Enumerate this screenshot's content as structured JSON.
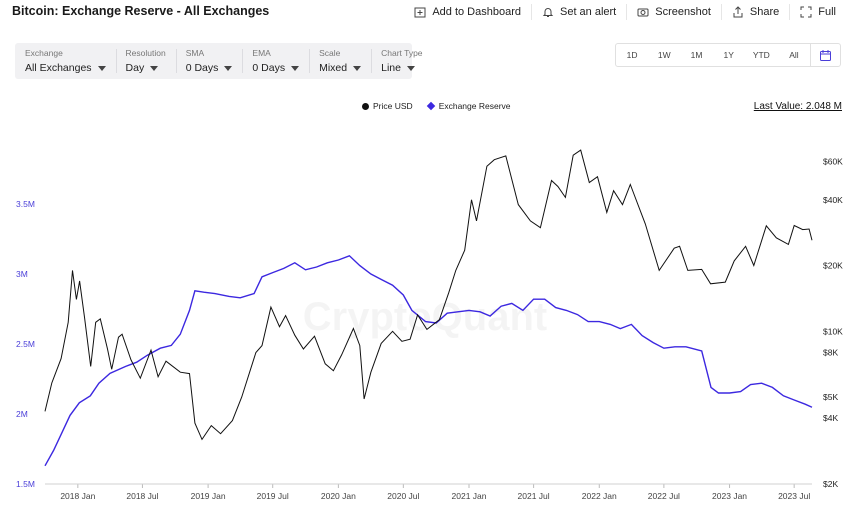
{
  "header": {
    "title": "Bitcoin: Exchange Reserve - All Exchanges",
    "actions": [
      {
        "label": "Add to Dashboard",
        "icon": "add-dashboard-icon"
      },
      {
        "label": "Set an alert",
        "icon": "bell-icon"
      },
      {
        "label": "Screenshot",
        "icon": "camera-icon"
      },
      {
        "label": "Share",
        "icon": "share-icon"
      },
      {
        "label": "Full",
        "icon": "fullscreen-icon"
      }
    ]
  },
  "filters": [
    {
      "label": "Exchange",
      "value": "All Exchanges"
    },
    {
      "label": "Resolution",
      "value": "Day"
    },
    {
      "label": "SMA",
      "value": "0 Days"
    },
    {
      "label": "EMA",
      "value": "0 Days"
    },
    {
      "label": "Scale",
      "value": "Mixed"
    },
    {
      "label": "Chart Type",
      "value": "Line"
    }
  ],
  "ranges": [
    "1D",
    "1W",
    "1M",
    "1Y",
    "YTD",
    "All"
  ],
  "legend": [
    "Price USD",
    "Exchange Reserve"
  ],
  "last_value": "Last Value: 2.048 M",
  "watermark": "CryptoQuant",
  "colors": {
    "price": "#111111",
    "reserve": "#3c28e0",
    "left_axis": "#4a3ed8"
  },
  "chart_data": {
    "type": "line",
    "x_ticks": [
      "2018 Jan",
      "2018 Jul",
      "2019 Jan",
      "2019 Jul",
      "2020 Jan",
      "2020 Jul",
      "2021 Jan",
      "2021 Jul",
      "2022 Jan",
      "2022 Jul",
      "2023 Jan",
      "2023 Jul"
    ],
    "x_range": [
      "2017-10-01",
      "2023-08-20"
    ],
    "left_axis": {
      "ticks": [
        "1.5M",
        "2M",
        "2.5M",
        "3M",
        "3.5M"
      ],
      "range": [
        1.5,
        4.0
      ],
      "unit": "M"
    },
    "right_axis": {
      "ticks": [
        "$2K",
        "$4K",
        "$5K",
        "$8K",
        "$10K",
        "$20K",
        "$40K",
        "$60K"
      ],
      "scale": "log",
      "range": [
        2000,
        80000
      ]
    },
    "series": [
      {
        "name": "Price USD",
        "axis": "right",
        "points": [
          [
            "2017-10-01",
            4300
          ],
          [
            "2017-10-20",
            5800
          ],
          [
            "2017-11-15",
            7500
          ],
          [
            "2017-12-05",
            11000
          ],
          [
            "2017-12-17",
            19000
          ],
          [
            "2017-12-28",
            14000
          ],
          [
            "2018-01-06",
            17000
          ],
          [
            "2018-01-20",
            11500
          ],
          [
            "2018-02-06",
            6900
          ],
          [
            "2018-02-20",
            11000
          ],
          [
            "2018-03-05",
            11400
          ],
          [
            "2018-03-25",
            8300
          ],
          [
            "2018-04-06",
            6700
          ],
          [
            "2018-04-25",
            9400
          ],
          [
            "2018-05-05",
            9700
          ],
          [
            "2018-05-30",
            7400
          ],
          [
            "2018-06-25",
            6100
          ],
          [
            "2018-07-25",
            8200
          ],
          [
            "2018-08-14",
            6200
          ],
          [
            "2018-09-05",
            7300
          ],
          [
            "2018-10-15",
            6500
          ],
          [
            "2018-11-10",
            6400
          ],
          [
            "2018-11-25",
            3800
          ],
          [
            "2018-12-15",
            3200
          ],
          [
            "2019-01-10",
            3700
          ],
          [
            "2019-02-05",
            3400
          ],
          [
            "2019-03-10",
            3900
          ],
          [
            "2019-04-05",
            5000
          ],
          [
            "2019-05-15",
            8000
          ],
          [
            "2019-06-01",
            8600
          ],
          [
            "2019-06-26",
            12900
          ],
          [
            "2019-07-20",
            10500
          ],
          [
            "2019-08-06",
            11800
          ],
          [
            "2019-09-01",
            9600
          ],
          [
            "2019-09-25",
            8300
          ],
          [
            "2019-10-26",
            9500
          ],
          [
            "2019-11-25",
            7100
          ],
          [
            "2019-12-18",
            6600
          ],
          [
            "2020-01-10",
            7800
          ],
          [
            "2020-02-12",
            10300
          ],
          [
            "2020-03-01",
            8600
          ],
          [
            "2020-03-13",
            4900
          ],
          [
            "2020-04-01",
            6500
          ],
          [
            "2020-04-30",
            8800
          ],
          [
            "2020-06-01",
            10000
          ],
          [
            "2020-06-27",
            9000
          ],
          [
            "2020-07-20",
            9200
          ],
          [
            "2020-08-10",
            11900
          ],
          [
            "2020-09-05",
            10200
          ],
          [
            "2020-10-10",
            11300
          ],
          [
            "2020-11-05",
            15000
          ],
          [
            "2020-11-25",
            19000
          ],
          [
            "2020-12-20",
            23500
          ],
          [
            "2021-01-08",
            40000
          ],
          [
            "2021-01-22",
            32000
          ],
          [
            "2021-02-20",
            57000
          ],
          [
            "2021-03-13",
            61000
          ],
          [
            "2021-04-14",
            63500
          ],
          [
            "2021-05-19",
            38000
          ],
          [
            "2021-06-22",
            32000
          ],
          [
            "2021-07-20",
            29800
          ],
          [
            "2021-08-20",
            49000
          ],
          [
            "2021-09-07",
            46000
          ],
          [
            "2021-09-28",
            41000
          ],
          [
            "2021-10-20",
            64000
          ],
          [
            "2021-11-10",
            67500
          ],
          [
            "2021-12-04",
            48000
          ],
          [
            "2021-12-27",
            51000
          ],
          [
            "2022-01-22",
            35000
          ],
          [
            "2022-02-10",
            44000
          ],
          [
            "2022-03-07",
            38000
          ],
          [
            "2022-03-29",
            47000
          ],
          [
            "2022-05-10",
            31000
          ],
          [
            "2022-06-18",
            19000
          ],
          [
            "2022-07-30",
            24000
          ],
          [
            "2022-08-14",
            24500
          ],
          [
            "2022-09-06",
            19000
          ],
          [
            "2022-10-15",
            19200
          ],
          [
            "2022-11-09",
            16500
          ],
          [
            "2022-12-20",
            16800
          ],
          [
            "2023-01-14",
            21000
          ],
          [
            "2023-02-15",
            24500
          ],
          [
            "2023-03-10",
            20000
          ],
          [
            "2023-04-14",
            30400
          ],
          [
            "2023-05-12",
            26800
          ],
          [
            "2023-06-15",
            25000
          ],
          [
            "2023-07-01",
            30500
          ],
          [
            "2023-07-25",
            29200
          ],
          [
            "2023-08-12",
            29400
          ],
          [
            "2023-08-20",
            26100
          ]
        ]
      },
      {
        "name": "Exchange Reserve",
        "axis": "left",
        "points": [
          [
            "2017-10-01",
            1.63
          ],
          [
            "2017-10-25",
            1.74
          ],
          [
            "2017-11-20",
            1.88
          ],
          [
            "2017-12-10",
            1.99
          ],
          [
            "2018-01-05",
            2.08
          ],
          [
            "2018-02-05",
            2.13
          ],
          [
            "2018-03-01",
            2.22
          ],
          [
            "2018-04-01",
            2.29
          ],
          [
            "2018-05-15",
            2.34
          ],
          [
            "2018-06-15",
            2.37
          ],
          [
            "2018-07-15",
            2.42
          ],
          [
            "2018-08-20",
            2.47
          ],
          [
            "2018-09-20",
            2.49
          ],
          [
            "2018-10-15",
            2.57
          ],
          [
            "2018-11-10",
            2.74
          ],
          [
            "2018-11-25",
            2.88
          ],
          [
            "2018-12-20",
            2.87
          ],
          [
            "2019-01-20",
            2.86
          ],
          [
            "2019-03-01",
            2.84
          ],
          [
            "2019-04-01",
            2.83
          ],
          [
            "2019-05-10",
            2.86
          ],
          [
            "2019-06-01",
            2.98
          ],
          [
            "2019-07-01",
            3.01
          ],
          [
            "2019-08-01",
            3.04
          ],
          [
            "2019-09-01",
            3.08
          ],
          [
            "2019-10-01",
            3.03
          ],
          [
            "2019-11-01",
            3.05
          ],
          [
            "2019-12-01",
            3.08
          ],
          [
            "2020-01-01",
            3.1
          ],
          [
            "2020-02-01",
            3.13
          ],
          [
            "2020-03-01",
            3.06
          ],
          [
            "2020-04-01",
            3.0
          ],
          [
            "2020-05-01",
            2.96
          ],
          [
            "2020-06-01",
            2.92
          ],
          [
            "2020-07-01",
            2.85
          ],
          [
            "2020-07-25",
            2.74
          ],
          [
            "2020-09-01",
            2.66
          ],
          [
            "2020-10-01",
            2.65
          ],
          [
            "2020-11-01",
            2.72
          ],
          [
            "2020-12-01",
            2.73
          ],
          [
            "2021-01-01",
            2.74
          ],
          [
            "2021-02-01",
            2.73
          ],
          [
            "2021-03-01",
            2.7
          ],
          [
            "2021-04-01",
            2.77
          ],
          [
            "2021-05-01",
            2.79
          ],
          [
            "2021-06-01",
            2.74
          ],
          [
            "2021-07-01",
            2.82
          ],
          [
            "2021-08-01",
            2.82
          ],
          [
            "2021-09-01",
            2.76
          ],
          [
            "2021-10-01",
            2.74
          ],
          [
            "2021-11-01",
            2.71
          ],
          [
            "2021-12-01",
            2.66
          ],
          [
            "2022-01-01",
            2.66
          ],
          [
            "2022-02-01",
            2.64
          ],
          [
            "2022-03-01",
            2.61
          ],
          [
            "2022-04-01",
            2.64
          ],
          [
            "2022-05-01",
            2.56
          ],
          [
            "2022-06-01",
            2.51
          ],
          [
            "2022-07-01",
            2.47
          ],
          [
            "2022-08-01",
            2.48
          ],
          [
            "2022-09-01",
            2.48
          ],
          [
            "2022-10-15",
            2.45
          ],
          [
            "2022-11-10",
            2.19
          ],
          [
            "2022-12-01",
            2.15
          ],
          [
            "2023-01-01",
            2.15
          ],
          [
            "2023-02-01",
            2.16
          ],
          [
            "2023-03-01",
            2.21
          ],
          [
            "2023-04-01",
            2.22
          ],
          [
            "2023-05-01",
            2.19
          ],
          [
            "2023-06-01",
            2.13
          ],
          [
            "2023-07-01",
            2.1
          ],
          [
            "2023-08-01",
            2.07
          ],
          [
            "2023-08-20",
            2.048
          ]
        ]
      }
    ]
  }
}
